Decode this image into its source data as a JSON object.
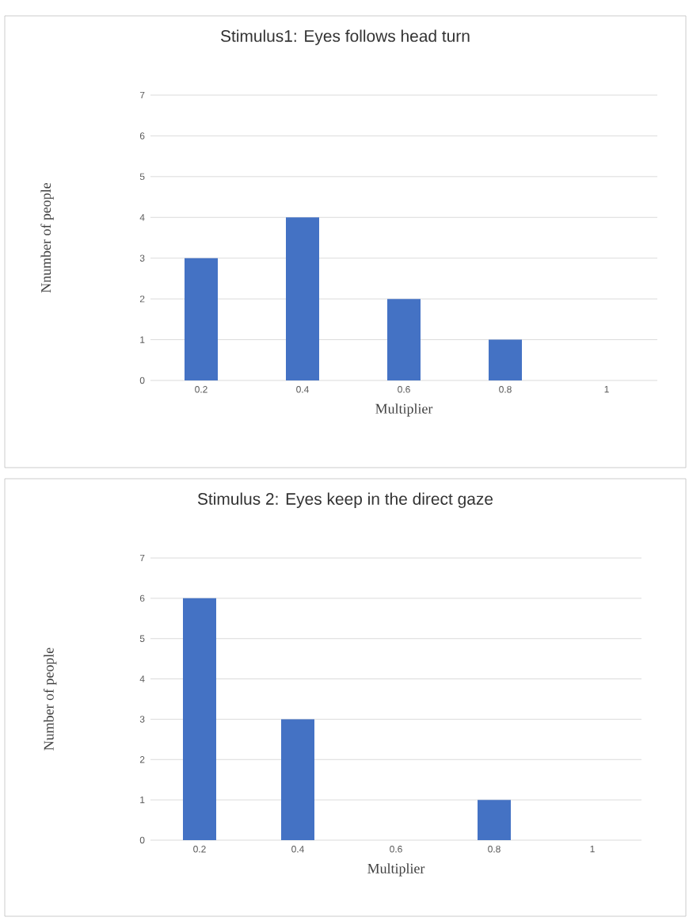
{
  "chart_data": [
    {
      "type": "bar",
      "title": "Stimulus1: Eyes follows head turn",
      "xlabel": "Multiplier",
      "ylabel": "Nnumber of people",
      "categories": [
        "0.2",
        "0.4",
        "0.6",
        "0.8",
        "1"
      ],
      "values": [
        3,
        4,
        2,
        1,
        0
      ],
      "color": "#4472c4",
      "ylim": [
        0,
        7
      ],
      "yticks": [
        0,
        1,
        2,
        3,
        4,
        5,
        6,
        7
      ],
      "grid": "y"
    },
    {
      "type": "bar",
      "title": "Stimulus 2: Eyes keep in the direct gaze",
      "xlabel": "Multiplier",
      "ylabel": "Number of people",
      "categories": [
        "0.2",
        "0.4",
        "0.6",
        "0.8",
        "1"
      ],
      "values": [
        6,
        3,
        0,
        1,
        0
      ],
      "color": "#4472c4",
      "ylim": [
        0,
        7
      ],
      "yticks": [
        0,
        1,
        2,
        3,
        4,
        5,
        6,
        7
      ],
      "grid": "y"
    }
  ]
}
